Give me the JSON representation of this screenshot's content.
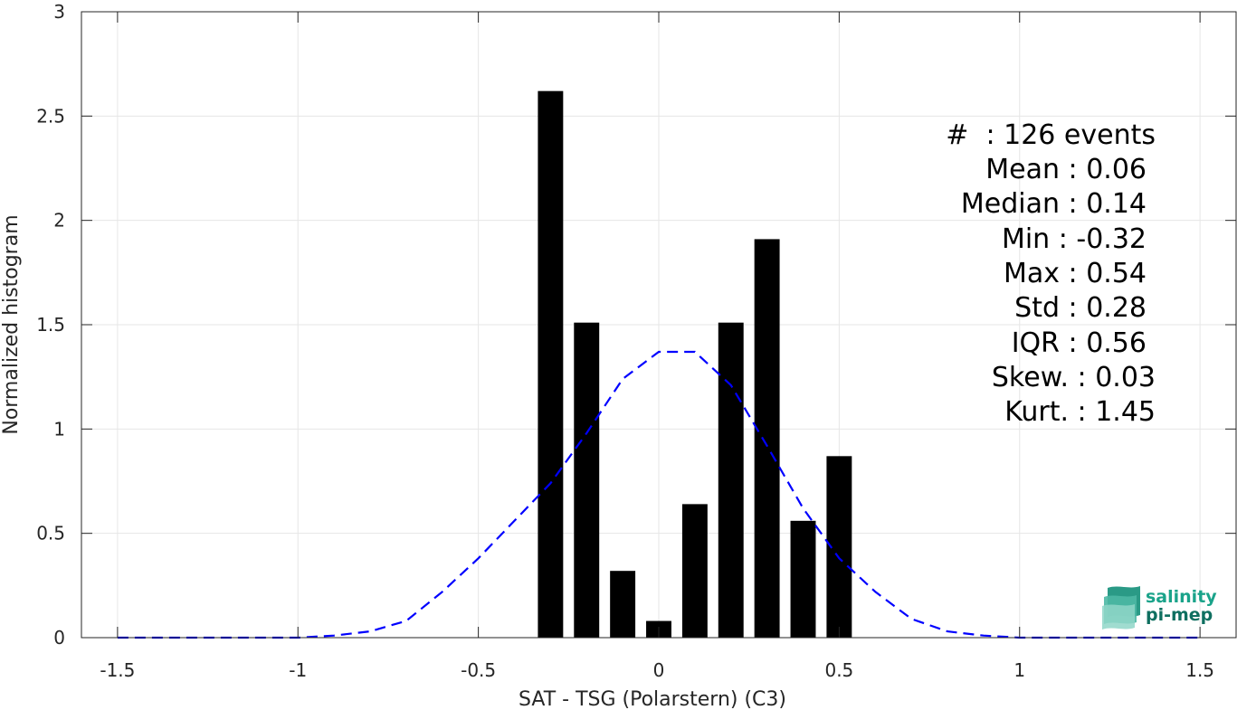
{
  "chart_data": {
    "type": "bar",
    "xlabel": "SAT - TSG (Polarstern) (C3)",
    "ylabel": "Normalized histogram",
    "xlim": [
      -1.6,
      1.6
    ],
    "ylim": [
      0,
      3
    ],
    "xticks": [
      -1.5,
      -1,
      -0.5,
      0,
      0.5,
      1,
      1.5
    ],
    "xtick_labels": [
      "-1.5",
      "-1",
      "-0.5",
      "0",
      "0.5",
      "1",
      "1.5"
    ],
    "yticks": [
      0,
      0.5,
      1,
      1.5,
      2,
      2.5,
      3
    ],
    "ytick_labels": [
      "0",
      "0.5",
      "1",
      "1.5",
      "2",
      "2.5",
      "3"
    ],
    "grid": true,
    "bars": {
      "x": [
        -0.3,
        -0.2,
        -0.1,
        0.0,
        0.1,
        0.2,
        0.3,
        0.4,
        0.5
      ],
      "values": [
        2.62,
        1.51,
        0.32,
        0.08,
        0.64,
        1.51,
        1.91,
        0.56,
        0.87
      ],
      "width": 0.07,
      "color": "#000000"
    },
    "fit_curve": {
      "style": "dashed",
      "color": "#0000ff",
      "x": [
        -1.5,
        -1.4,
        -1.3,
        -1.2,
        -1.1,
        -1.0,
        -0.9,
        -0.8,
        -0.7,
        -0.6,
        -0.5,
        -0.4,
        -0.3,
        -0.2,
        -0.1,
        0.0,
        0.1,
        0.2,
        0.3,
        0.4,
        0.5,
        0.6,
        0.7,
        0.8,
        0.9,
        1.0,
        1.1,
        1.2,
        1.3,
        1.4,
        1.5
      ],
      "y": [
        0.0,
        0.0,
        0.0,
        0.0,
        0.0,
        0.0,
        0.01,
        0.03,
        0.08,
        0.22,
        0.38,
        0.56,
        0.74,
        0.98,
        1.24,
        1.37,
        1.37,
        1.21,
        0.92,
        0.62,
        0.38,
        0.22,
        0.09,
        0.03,
        0.01,
        0.0,
        0.0,
        0.0,
        0.0,
        0.0,
        0.0
      ]
    },
    "annotations": [
      "#  : 126 events",
      "Mean : 0.06",
      "Median : 0.14",
      "Min : -0.32",
      "Max : 0.54",
      "Std : 0.28",
      "IQR : 0.56",
      "Skew. : 0.03",
      "Kurt. : 1.45"
    ]
  },
  "logo": {
    "line1": "salinity",
    "line2": "pi-mep",
    "color_text1": "#1aa38a",
    "color_text2": "#0f6f60"
  }
}
